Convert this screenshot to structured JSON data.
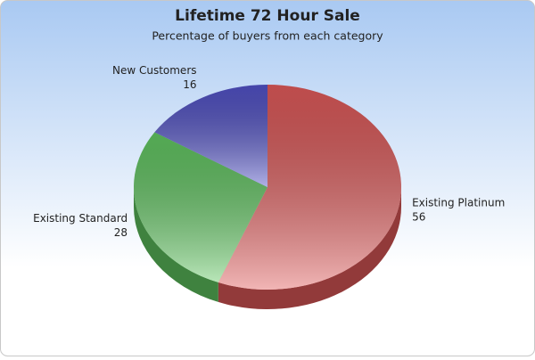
{
  "chart_data": {
    "type": "pie",
    "title": "Lifetime 72 Hour Sale",
    "subtitle": "Percentage of buyers from each category",
    "categories": [
      "Existing Platinum",
      "Existing Standard",
      "New Customers"
    ],
    "values": [
      56,
      28,
      16
    ],
    "colors": [
      "#e05a5a",
      "#62c862",
      "#5252c8"
    ]
  }
}
